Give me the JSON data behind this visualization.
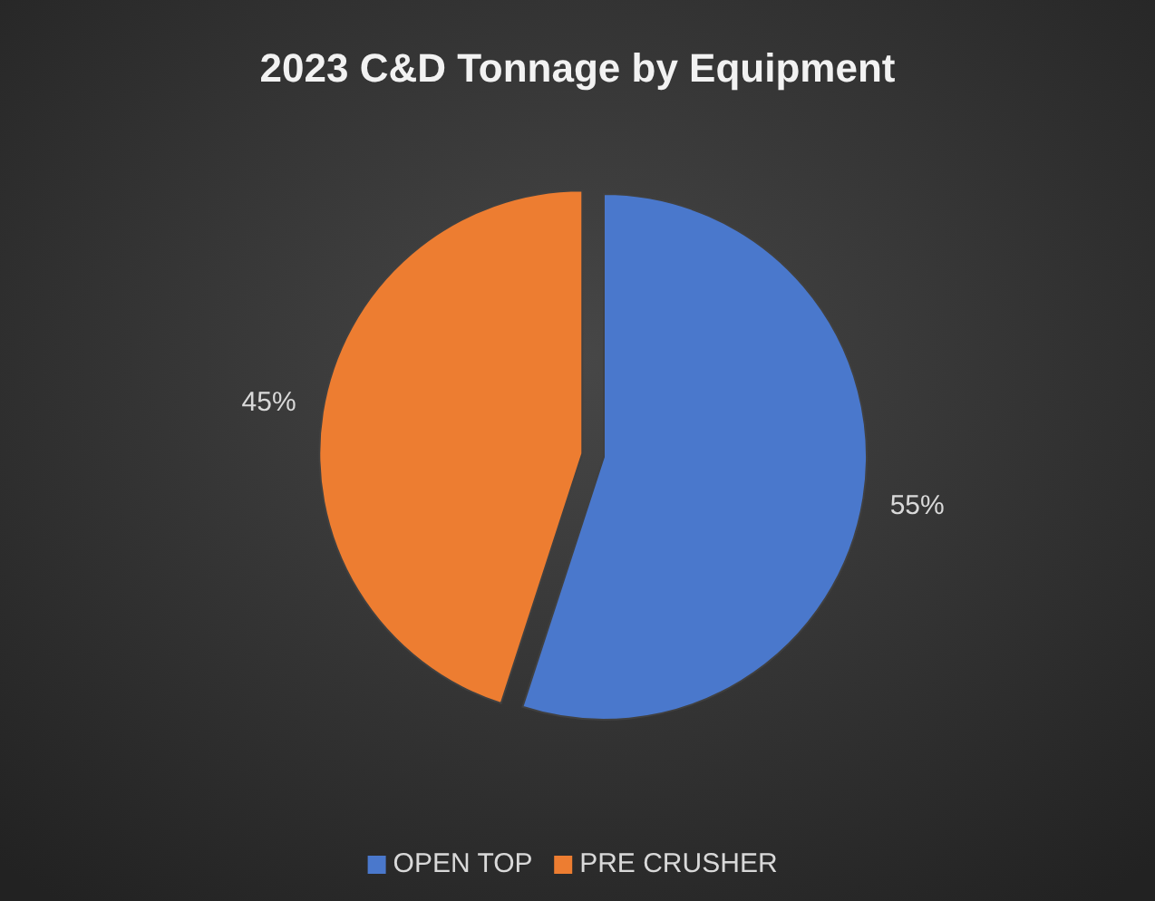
{
  "chart_data": {
    "type": "pie",
    "title": "2023 C&D Tonnage by Equipment",
    "categories": [
      "OPEN TOP",
      "PRE CRUSHER"
    ],
    "values": [
      55,
      45
    ],
    "colors": [
      "#4a78cc",
      "#ed7d31"
    ],
    "value_labels": [
      "55%",
      "45%"
    ],
    "legend": "bottom"
  }
}
